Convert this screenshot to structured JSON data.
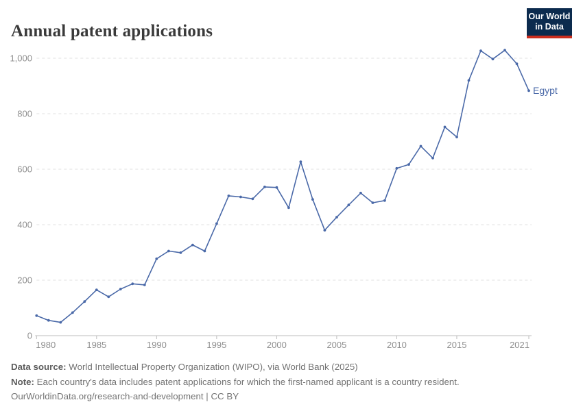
{
  "header": {
    "title": "Annual patent applications",
    "logo": {
      "line1": "Our World",
      "line2": "in Data",
      "bg_color": "#0c2b4e",
      "accent_color": "#cc2e1e"
    }
  },
  "chart_data": {
    "type": "line",
    "title": "Annual patent applications",
    "xlabel": "",
    "ylabel": "",
    "xlim": [
      1980,
      2021
    ],
    "ylim": [
      0,
      1060
    ],
    "grid": "horizontal-dashed",
    "legend_position": "end-of-line-label",
    "x_ticks": [
      1980,
      1985,
      1990,
      1995,
      2000,
      2005,
      2010,
      2015,
      2021
    ],
    "y_ticks": [
      0,
      200,
      400,
      600,
      800,
      1000
    ],
    "y_tick_labels": [
      "0",
      "200",
      "400",
      "600",
      "800",
      "1,000"
    ],
    "series": [
      {
        "name": "Egypt",
        "color": "#4a69a8",
        "x": [
          1980,
          1981,
          1982,
          1983,
          1984,
          1985,
          1986,
          1987,
          1988,
          1989,
          1990,
          1991,
          1992,
          1993,
          1994,
          1995,
          1996,
          1997,
          1998,
          1999,
          2000,
          2001,
          2002,
          2003,
          2004,
          2005,
          2006,
          2007,
          2008,
          2009,
          2010,
          2011,
          2012,
          2013,
          2014,
          2015,
          2016,
          2017,
          2018,
          2019,
          2020,
          2021
        ],
        "values": [
          72,
          55,
          48,
          83,
          123,
          165,
          140,
          168,
          187,
          183,
          277,
          305,
          299,
          327,
          305,
          404,
          504,
          500,
          493,
          536,
          534,
          461,
          627,
          491,
          380,
          427,
          471,
          514,
          479,
          487,
          603,
          617,
          683,
          640,
          752,
          716,
          920,
          1027,
          997,
          1029,
          980,
          883
        ]
      }
    ],
    "end_label": "Egypt"
  },
  "footer": {
    "source_label": "Data source:",
    "source_text": " World Intellectual Property Organization (WIPO), via World Bank (2025)",
    "note_label": "Note:",
    "note_text": " Each country's data includes patent applications for which the first-named applicant is a country resident.",
    "license_link": "OurWorldinData.org/research-and-development",
    "license_sep": " | ",
    "license_cc": "CC BY"
  },
  "colors": {
    "title": "#3a3a3a",
    "tick_text": "#8f8f8f",
    "gridline": "#e0e0e0",
    "axis_line": "#bdbdbd",
    "footer_text": "#737373"
  }
}
